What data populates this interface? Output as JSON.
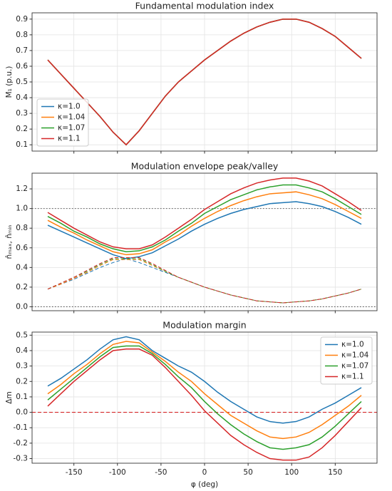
{
  "chart_data": [
    {
      "type": "line",
      "title": "Fundamental modulation index",
      "ylabel": "M₁ (p.u.)",
      "x": [
        -180,
        -165,
        -150,
        -135,
        -120,
        -105,
        -90,
        -75,
        -60,
        -45,
        -30,
        -15,
        0,
        15,
        30,
        45,
        60,
        75,
        90,
        105,
        120,
        135,
        150,
        165,
        180
      ],
      "ylim": [
        0.06,
        0.94
      ],
      "yticks": [
        0.1,
        0.2,
        0.3,
        0.4,
        0.5,
        0.6,
        0.7,
        0.8,
        0.9
      ],
      "grid": true,
      "legend": "lower left",
      "series": [
        {
          "name": "κ=1.0",
          "color": "#1f77b4",
          "values": [
            0.64,
            0.55,
            0.46,
            0.37,
            0.28,
            0.18,
            0.1,
            0.19,
            0.3,
            0.41,
            0.5,
            0.57,
            0.64,
            0.7,
            0.76,
            0.81,
            0.85,
            0.88,
            0.9,
            0.9,
            0.88,
            0.84,
            0.79,
            0.72,
            0.65
          ]
        },
        {
          "name": "κ=1.04",
          "color": "#ff7f0e",
          "values": [
            0.64,
            0.55,
            0.46,
            0.37,
            0.28,
            0.18,
            0.1,
            0.19,
            0.3,
            0.41,
            0.5,
            0.57,
            0.64,
            0.7,
            0.76,
            0.81,
            0.85,
            0.88,
            0.9,
            0.9,
            0.88,
            0.84,
            0.79,
            0.72,
            0.65
          ]
        },
        {
          "name": "κ=1.07",
          "color": "#2ca02c",
          "values": [
            0.64,
            0.55,
            0.46,
            0.37,
            0.28,
            0.18,
            0.1,
            0.19,
            0.3,
            0.41,
            0.5,
            0.57,
            0.64,
            0.7,
            0.76,
            0.81,
            0.85,
            0.88,
            0.9,
            0.9,
            0.88,
            0.84,
            0.79,
            0.72,
            0.65
          ]
        },
        {
          "name": "κ=1.1",
          "color": "#d62728",
          "values": [
            0.64,
            0.55,
            0.46,
            0.37,
            0.28,
            0.18,
            0.1,
            0.19,
            0.3,
            0.41,
            0.5,
            0.57,
            0.64,
            0.7,
            0.76,
            0.81,
            0.85,
            0.88,
            0.9,
            0.9,
            0.88,
            0.84,
            0.79,
            0.72,
            0.65
          ]
        }
      ]
    },
    {
      "type": "line",
      "title": "Modulation envelope peak/valley",
      "ylabel": "n̂ₘₐₓ, n̂ₘᵢₙ",
      "x": [
        -180,
        -165,
        -150,
        -135,
        -120,
        -105,
        -90,
        -75,
        -60,
        -45,
        -30,
        -15,
        0,
        15,
        30,
        45,
        60,
        75,
        90,
        105,
        120,
        135,
        150,
        165,
        180
      ],
      "ylim": [
        -0.04,
        1.36
      ],
      "yticks": [
        {
          "value": 0,
          "label": "0.0"
        },
        0.2,
        0.4,
        0.6,
        0.8,
        {
          "value": 1,
          "label": "1.0"
        },
        1.2
      ],
      "grid": true,
      "hlines": [
        {
          "y": 1.0,
          "color": "#555555",
          "dash": "dotted"
        },
        {
          "y": 0.0,
          "color": "#555555",
          "dash": "dotted"
        }
      ],
      "series": [
        {
          "color": "#1f77b4",
          "values": [
            0.83,
            0.77,
            0.71,
            0.65,
            0.59,
            0.53,
            0.49,
            0.51,
            0.55,
            0.62,
            0.69,
            0.77,
            0.84,
            0.9,
            0.95,
            0.99,
            1.02,
            1.05,
            1.06,
            1.07,
            1.05,
            1.02,
            0.97,
            0.91,
            0.84
          ]
        },
        {
          "color": "#ff7f0e",
          "values": [
            0.88,
            0.81,
            0.75,
            0.68,
            0.62,
            0.56,
            0.53,
            0.54,
            0.58,
            0.66,
            0.73,
            0.82,
            0.9,
            0.97,
            1.03,
            1.08,
            1.12,
            1.15,
            1.16,
            1.17,
            1.14,
            1.1,
            1.04,
            0.97,
            0.9
          ]
        },
        {
          "color": "#2ca02c",
          "values": [
            0.92,
            0.85,
            0.77,
            0.71,
            0.64,
            0.59,
            0.56,
            0.57,
            0.61,
            0.68,
            0.77,
            0.85,
            0.95,
            1.02,
            1.09,
            1.14,
            1.19,
            1.22,
            1.24,
            1.24,
            1.21,
            1.17,
            1.1,
            1.02,
            0.94
          ]
        },
        {
          "color": "#d62728",
          "values": [
            0.96,
            0.88,
            0.8,
            0.73,
            0.66,
            0.61,
            0.59,
            0.59,
            0.63,
            0.71,
            0.8,
            0.89,
            0.99,
            1.07,
            1.15,
            1.21,
            1.26,
            1.29,
            1.31,
            1.31,
            1.28,
            1.23,
            1.15,
            1.07,
            0.98
          ]
        },
        {
          "color": "#1f77b4",
          "dash": "dashed",
          "values": [
            0.18,
            0.23,
            0.28,
            0.34,
            0.4,
            0.45,
            0.49,
            0.45,
            0.4,
            0.35,
            0.3,
            0.25,
            0.2,
            0.16,
            0.12,
            0.09,
            0.06,
            0.05,
            0.04,
            0.05,
            0.06,
            0.08,
            0.11,
            0.14,
            0.18
          ]
        },
        {
          "color": "#ff7f0e",
          "dash": "dashed",
          "values": [
            0.18,
            0.23,
            0.29,
            0.35,
            0.42,
            0.48,
            0.48,
            0.48,
            0.42,
            0.36,
            0.3,
            0.25,
            0.2,
            0.16,
            0.12,
            0.09,
            0.06,
            0.05,
            0.04,
            0.05,
            0.06,
            0.08,
            0.11,
            0.14,
            0.18
          ]
        },
        {
          "color": "#2ca02c",
          "dash": "dashed",
          "values": [
            0.18,
            0.24,
            0.3,
            0.36,
            0.43,
            0.49,
            0.49,
            0.49,
            0.43,
            0.36,
            0.3,
            0.25,
            0.2,
            0.16,
            0.12,
            0.09,
            0.06,
            0.05,
            0.04,
            0.05,
            0.06,
            0.08,
            0.11,
            0.14,
            0.18
          ]
        },
        {
          "color": "#d62728",
          "dash": "dashed",
          "values": [
            0.18,
            0.24,
            0.3,
            0.37,
            0.44,
            0.5,
            0.5,
            0.5,
            0.44,
            0.37,
            0.3,
            0.25,
            0.2,
            0.16,
            0.12,
            0.09,
            0.06,
            0.05,
            0.04,
            0.05,
            0.06,
            0.08,
            0.11,
            0.14,
            0.18
          ]
        }
      ]
    },
    {
      "type": "line",
      "title": "Modulation margin",
      "ylabel": "Δm",
      "xlabel": "φ (deg)",
      "x": [
        -180,
        -165,
        -150,
        -135,
        -120,
        -105,
        -90,
        -75,
        -60,
        -45,
        -30,
        -15,
        0,
        15,
        30,
        45,
        60,
        75,
        90,
        105,
        120,
        135,
        150,
        165,
        180
      ],
      "xlim": [
        -198,
        198
      ],
      "xticks": [
        -150,
        -100,
        -50,
        0,
        50,
        100,
        150
      ],
      "ylim": [
        -0.33,
        0.52
      ],
      "yticks": [
        -0.3,
        -0.2,
        -0.1,
        {
          "value": 0,
          "label": "0.0"
        },
        0.1,
        0.2,
        0.3,
        0.4,
        0.5
      ],
      "grid": true,
      "legend": "upper right",
      "hlines": [
        {
          "y": 0.0,
          "color": "#d62728",
          "dash": "dashed"
        }
      ],
      "series": [
        {
          "name": "κ=1.0",
          "color": "#1f77b4",
          "values": [
            0.17,
            0.22,
            0.28,
            0.34,
            0.41,
            0.47,
            0.49,
            0.47,
            0.4,
            0.35,
            0.3,
            0.26,
            0.2,
            0.13,
            0.07,
            0.02,
            -0.03,
            -0.06,
            -0.07,
            -0.06,
            -0.03,
            0.02,
            0.06,
            0.11,
            0.16
          ]
        },
        {
          "name": "κ=1.04",
          "color": "#ff7f0e",
          "values": [
            0.12,
            0.18,
            0.25,
            0.31,
            0.38,
            0.44,
            0.46,
            0.45,
            0.39,
            0.33,
            0.26,
            0.2,
            0.12,
            0.05,
            -0.02,
            -0.07,
            -0.12,
            -0.16,
            -0.17,
            -0.16,
            -0.13,
            -0.08,
            -0.02,
            0.04,
            0.11
          ]
        },
        {
          "name": "κ=1.07",
          "color": "#2ca02c",
          "values": [
            0.08,
            0.15,
            0.22,
            0.29,
            0.36,
            0.42,
            0.43,
            0.43,
            0.38,
            0.31,
            0.23,
            0.16,
            0.07,
            -0.01,
            -0.08,
            -0.14,
            -0.19,
            -0.23,
            -0.24,
            -0.23,
            -0.21,
            -0.16,
            -0.09,
            -0.01,
            0.07
          ]
        },
        {
          "name": "κ=1.1",
          "color": "#d62728",
          "values": [
            0.04,
            0.12,
            0.2,
            0.27,
            0.34,
            0.4,
            0.41,
            0.41,
            0.37,
            0.29,
            0.2,
            0.11,
            0.01,
            -0.07,
            -0.15,
            -0.21,
            -0.26,
            -0.3,
            -0.31,
            -0.31,
            -0.29,
            -0.23,
            -0.15,
            -0.06,
            0.03
          ]
        }
      ]
    }
  ]
}
